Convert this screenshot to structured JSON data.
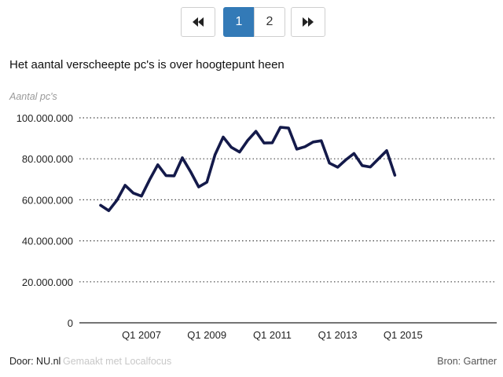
{
  "pagination": {
    "pages": [
      "1",
      "2"
    ],
    "active": "1",
    "first_icon": "first-page-icon",
    "last_icon": "last-page-icon"
  },
  "chart_data": {
    "type": "line",
    "title": "Het aantal verscheepte pc's is over hoogtepunt heen",
    "ylabel": "Aantal pc's",
    "ylim": [
      0,
      100000000
    ],
    "y_ticks": [
      {
        "value": 0,
        "label": "0"
      },
      {
        "value": 20000000,
        "label": "20.000.000"
      },
      {
        "value": 40000000,
        "label": "40.000.000"
      },
      {
        "value": 60000000,
        "label": "60.000.000"
      },
      {
        "value": 80000000,
        "label": "80.000.000"
      },
      {
        "value": 100000000,
        "label": "100.000.000"
      }
    ],
    "x_ticks": [
      {
        "index": 5,
        "label": "Q1 2007"
      },
      {
        "index": 13,
        "label": "Q1 2009"
      },
      {
        "index": 21,
        "label": "Q1 2011"
      },
      {
        "index": 29,
        "label": "Q1 2013"
      },
      {
        "index": 37,
        "label": "Q1 2015"
      }
    ],
    "grid": "horizontal-dotted",
    "line_color": "#141a4a",
    "values": [
      57300000,
      54700000,
      59800000,
      67100000,
      63300000,
      61800000,
      69800000,
      77100000,
      71800000,
      71700000,
      80500000,
      73800000,
      66300000,
      68600000,
      82000000,
      90600000,
      85600000,
      83300000,
      89000000,
      93400000,
      87700000,
      87800000,
      95400000,
      95000000,
      84700000,
      85900000,
      88200000,
      88800000,
      77900000,
      75900000,
      79500000,
      82600000,
      76700000,
      76000000,
      80000000,
      84000000,
      72000000
    ]
  },
  "footer": {
    "author": "Door: NU.nl",
    "made_with": "Gemaakt met Localfocus",
    "source": "Bron: Gartner"
  }
}
